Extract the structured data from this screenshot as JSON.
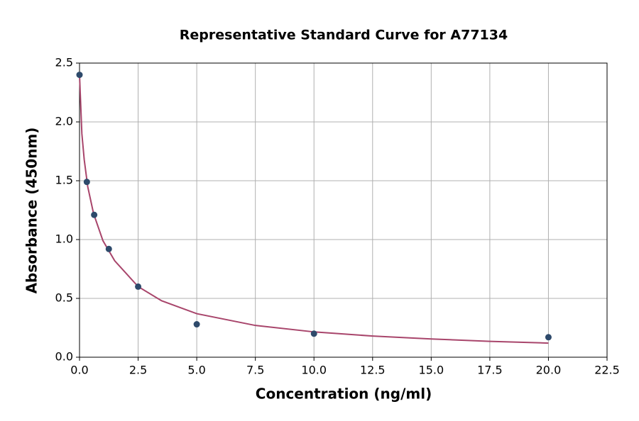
{
  "chart_data": {
    "type": "scatter",
    "title": "Representative Standard Curve for A77134",
    "x_label": "Concentration (ng/ml)",
    "y_label": "Absorbance (450nm)",
    "xlim": [
      0,
      22.5
    ],
    "ylim": [
      0,
      2.5
    ],
    "xticks": [
      {
        "value": 0,
        "label": "0.0"
      },
      2.5,
      {
        "value": 5,
        "label": "5.0"
      },
      7.5,
      {
        "value": 10,
        "label": "10.0"
      },
      12.5,
      {
        "value": 15,
        "label": "15.0"
      },
      17.5,
      {
        "value": 20,
        "label": "20.0"
      },
      22.5
    ],
    "yticks": [
      {
        "value": 0,
        "label": "0.0"
      },
      0.5,
      {
        "value": 1,
        "label": "1.0"
      },
      1.5,
      {
        "value": 2,
        "label": "2.0"
      },
      2.5
    ],
    "grid": true,
    "series": [
      {
        "mode": "markers",
        "color": "#2e4a6b",
        "x": [
          0,
          0.3125,
          0.625,
          1.25,
          2.5,
          5,
          10,
          20
        ],
        "values": [
          2.4,
          1.49,
          1.21,
          0.92,
          0.6,
          0.28,
          0.2,
          0.17
        ]
      },
      {
        "mode": "line",
        "color": "#a8456b",
        "x": [
          0,
          0.1,
          0.2,
          0.35,
          0.6,
          1.0,
          1.5,
          2.5,
          3.5,
          5,
          7.5,
          10,
          12.5,
          15,
          17.5,
          20
        ],
        "values": [
          2.4,
          1.9,
          1.68,
          1.45,
          1.22,
          0.99,
          0.82,
          0.6,
          0.48,
          0.37,
          0.27,
          0.215,
          0.18,
          0.155,
          0.135,
          0.12
        ]
      }
    ]
  }
}
